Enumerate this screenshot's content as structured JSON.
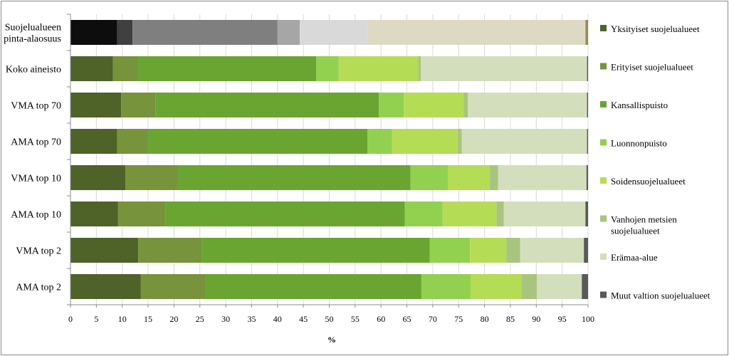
{
  "chart_data": {
    "type": "bar",
    "orientation": "horizontal",
    "stacked": true,
    "title": "",
    "xlabel": "%",
    "ylabel": "",
    "xlim": [
      0,
      100
    ],
    "xticks": [
      0,
      5,
      10,
      15,
      20,
      25,
      30,
      35,
      40,
      45,
      50,
      55,
      60,
      65,
      70,
      75,
      80,
      85,
      90,
      95,
      100
    ],
    "grid": "vertical",
    "legend_position": "right",
    "categories": [
      [
        "Suojelualueen",
        "pinta-alaosuus"
      ],
      [
        "Koko aineisto"
      ],
      [
        "VMA top 70"
      ],
      [
        "AMA top 70"
      ],
      [
        "VMA top 10"
      ],
      [
        "AMA top 10"
      ],
      [
        "VMA top 2"
      ],
      [
        "AMA top 2"
      ]
    ],
    "series": [
      {
        "name": "Yksityiset suojelualueet",
        "color": "#4f6228",
        "values": [
          null,
          8.2,
          9.8,
          9.0,
          10.6,
          9.2,
          13.1,
          13.6
        ]
      },
      {
        "name": "Erityiset suojelualueet",
        "color": "#77933c",
        "values": [
          null,
          4.8,
          6.6,
          6.0,
          10.1,
          9.2,
          12.3,
          12.4
        ]
      },
      {
        "name": "Kansallispuisto",
        "color": "#6aa532",
        "values": [
          null,
          34.5,
          43.2,
          42.4,
          45.0,
          46.2,
          44.0,
          41.8
        ]
      },
      {
        "name": "Luonnonpuisto",
        "color": "#92d050",
        "values": [
          null,
          4.3,
          4.8,
          4.7,
          7.2,
          7.3,
          7.8,
          9.5
        ]
      },
      {
        "name": "Soidensuojelualueet",
        "color": "#b5dc55",
        "values": [
          null,
          15.4,
          11.6,
          12.7,
          8.1,
          10.4,
          7.0,
          9.8
        ]
      },
      {
        "name": "Vanhojen metsien suojelualueet",
        "legend_lines": [
          "Vanhojen metsien",
          "suojelualueet"
        ],
        "color": "#a9c47f",
        "values": [
          null,
          0.5,
          0.8,
          0.8,
          1.6,
          1.4,
          2.7,
          3.0
        ]
      },
      {
        "name": "Erämaa-alue",
        "color": "#d3dfbc",
        "values": [
          null,
          32.1,
          23.0,
          24.2,
          17.1,
          15.8,
          12.3,
          8.7
        ]
      },
      {
        "name": "Muut valtion suojelualueet",
        "color": "#595959",
        "values": [
          null,
          0.2,
          0.2,
          0.2,
          0.3,
          0.5,
          0.8,
          1.2
        ]
      }
    ],
    "area_share_segments": [
      {
        "value": 9.0,
        "color": "#0d0d0d"
      },
      {
        "value": 3.0,
        "color": "#404040"
      },
      {
        "value": 28.0,
        "color": "#7f7f7f"
      },
      {
        "value": 4.3,
        "color": "#a6a6a6"
      },
      {
        "value": 13.1,
        "color": "#d9d9d9"
      },
      {
        "value": 42.1,
        "color": "#ddd9c3"
      },
      {
        "value": 0.5,
        "color": "#948a54"
      }
    ]
  }
}
